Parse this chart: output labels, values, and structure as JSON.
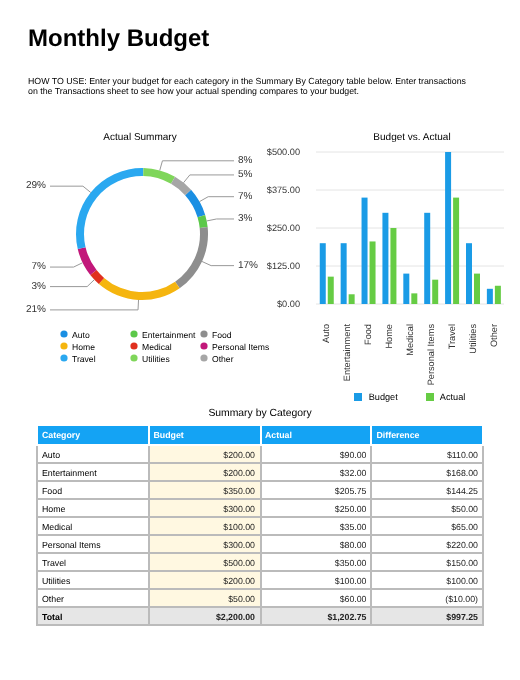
{
  "chart_data": [
    {
      "type": "donut",
      "title": "Actual Summary",
      "annotations": [
        "Monthly Budget",
        "HOW TO USE: Enter your budget for each category in the Summary By Category table below. Enter transactions on the Transactions sheet to see how your actual spending compares to your budget."
      ],
      "categories": [
        "Auto",
        "Entertainment",
        "Food",
        "Home",
        "Medical",
        "Personal Items",
        "Travel",
        "Utilities",
        "Other"
      ],
      "values": [
        7,
        3,
        17,
        21,
        3,
        7,
        29,
        8,
        5
      ],
      "value_labels": [
        "7%",
        "3%",
        "17%",
        "21%",
        "3%",
        "7%",
        "29%",
        "8%",
        "5%"
      ],
      "colors": [
        "#1a8fe3",
        "#5cc84a",
        "#8e8e8e",
        "#f5b50f",
        "#e0301e",
        "#c2187a",
        "#2aa8f0",
        "#7fd65a",
        "#a6a6a6"
      ],
      "legend": "bottom"
    },
    {
      "type": "bar",
      "title": "Budget vs. Actual",
      "categories": [
        "Auto",
        "Entertainment",
        "Food",
        "Home",
        "Medical",
        "Personal Items",
        "Travel",
        "Utilities",
        "Other"
      ],
      "series": [
        {
          "name": "Budget",
          "color": "#1a9be6",
          "values": [
            200,
            200,
            350,
            300,
            100,
            300,
            500,
            200,
            50
          ]
        },
        {
          "name": "Actual",
          "color": "#66cc44",
          "values": [
            90,
            32,
            205.75,
            250,
            35,
            80,
            350,
            100,
            60
          ]
        }
      ],
      "ylim": [
        0,
        500
      ],
      "yticks": [
        {
          "value": 0,
          "label": "$0.00"
        },
        {
          "value": 125,
          "label": "$125.00"
        },
        {
          "value": 250,
          "label": "$250.00"
        },
        {
          "value": 375,
          "label": "$375.00"
        },
        {
          "value": 500,
          "label": "$500.00"
        }
      ],
      "grid": "y",
      "legend": "bottom"
    },
    {
      "type": "other",
      "title": "Summary by Category",
      "ylabel": "Category",
      "categories": [
        "Budget",
        "Actual",
        "Difference"
      ],
      "y_categories": [
        "Auto",
        "Entertainment",
        "Food",
        "Home",
        "Medical",
        "Personal Items",
        "Travel",
        "Utilities",
        "Other",
        "Total"
      ],
      "cell_labels": [
        [
          "$200.00",
          "$90.00",
          "$110.00"
        ],
        [
          "$200.00",
          "$32.00",
          "$168.00"
        ],
        [
          "$350.00",
          "$205.75",
          "$144.25"
        ],
        [
          "$300.00",
          "$250.00",
          "$50.00"
        ],
        [
          "$100.00",
          "$35.00",
          "$65.00"
        ],
        [
          "$300.00",
          "$80.00",
          "$220.00"
        ],
        [
          "$500.00",
          "$350.00",
          "$150.00"
        ],
        [
          "$200.00",
          "$100.00",
          "$100.00"
        ],
        [
          "$50.00",
          "$60.00",
          "($10.00)"
        ],
        [
          "$2,200.00",
          "$1,202.75",
          "$997.25"
        ]
      ]
    }
  ]
}
